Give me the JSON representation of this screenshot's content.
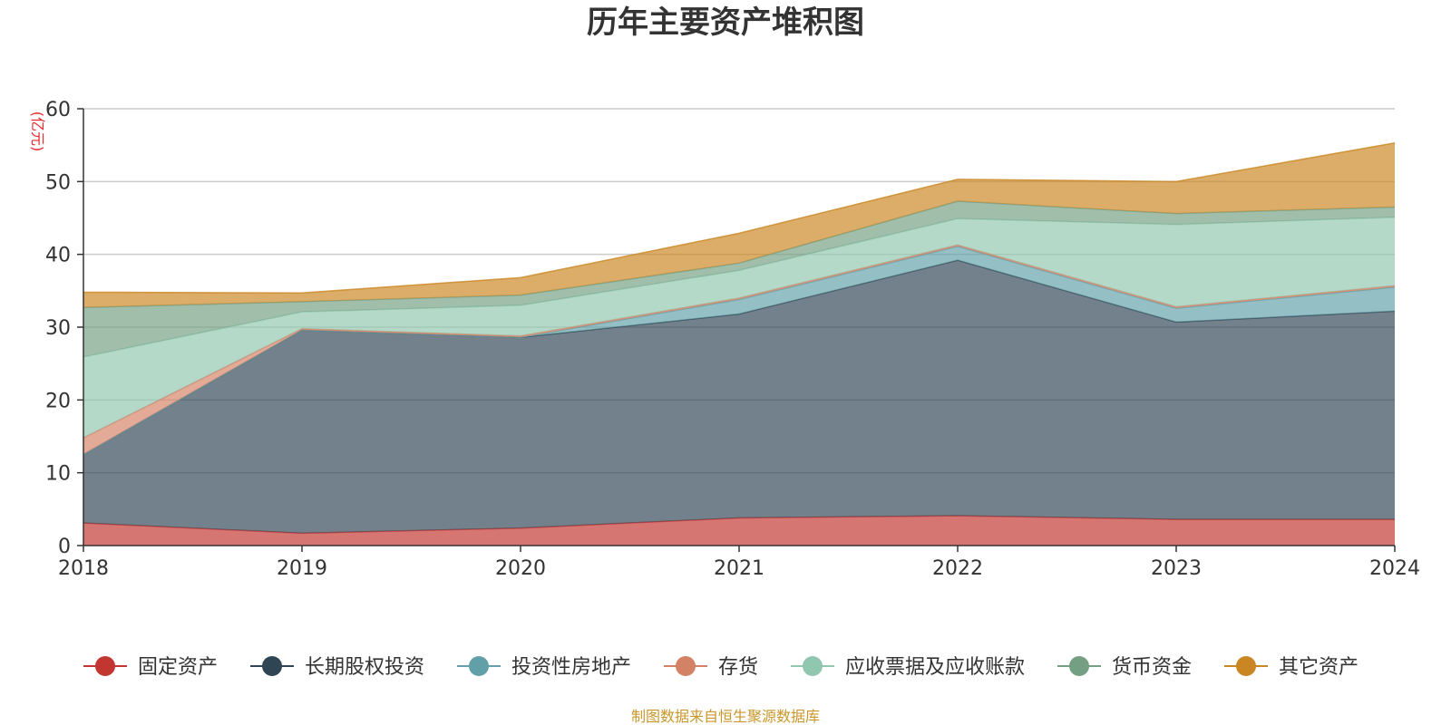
{
  "chart_data": {
    "type": "area",
    "stacked": true,
    "title": "历年主要资产堆积图",
    "unit_label": "(亿元)",
    "x": [
      "2018",
      "2019",
      "2020",
      "2021",
      "2022",
      "2023",
      "2024"
    ],
    "ylim": [
      0,
      60
    ],
    "yticks": [
      "0",
      "10",
      "20",
      "30",
      "40",
      "50",
      "60"
    ],
    "grid": true,
    "legend_position": "bottom",
    "series": [
      {
        "name": "固定资产",
        "color": "#c23531",
        "values": [
          3.1,
          1.7,
          2.4,
          3.8,
          4.1,
          3.6,
          3.6
        ]
      },
      {
        "name": "长期股权投资",
        "color": "#2f4554",
        "values": [
          9.4,
          27.9,
          26.2,
          28.0,
          35.1,
          27.1,
          28.6
        ]
      },
      {
        "name": "投资性房地产",
        "color": "#61a0a8",
        "values": [
          0.0,
          0.0,
          0.0,
          2.0,
          1.9,
          1.9,
          3.3
        ]
      },
      {
        "name": "存货",
        "color": "#d48265",
        "values": [
          2.3,
          0.2,
          0.2,
          0.2,
          0.2,
          0.2,
          0.2
        ]
      },
      {
        "name": "应收票据及应收账款",
        "color": "#91c7ae",
        "values": [
          11.1,
          2.3,
          4.2,
          3.8,
          3.6,
          11.3,
          9.4
        ]
      },
      {
        "name": "货币资金",
        "color": "#749f83",
        "values": [
          6.8,
          1.4,
          1.4,
          1.0,
          2.4,
          1.5,
          1.4
        ]
      },
      {
        "name": "其它资产",
        "color": "#ca8622",
        "values": [
          2.1,
          1.2,
          2.4,
          4.1,
          3.0,
          4.4,
          8.8
        ]
      }
    ]
  },
  "source_note": "制图数据来自恒生聚源数据库"
}
